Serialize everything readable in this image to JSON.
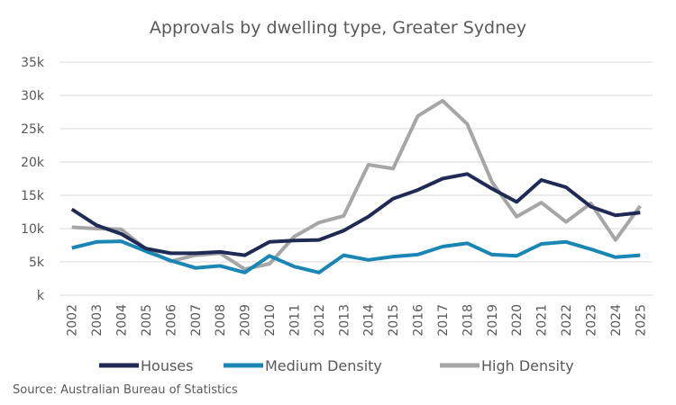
{
  "chart_data": {
    "type": "line",
    "title": "Approvals by dwelling type, Greater Sydney",
    "xlabel": "",
    "ylabel": "",
    "x": [
      "2002",
      "2003",
      "2004",
      "2005",
      "2006",
      "2007",
      "2008",
      "2009",
      "2010",
      "2011",
      "2012",
      "2013",
      "2014",
      "2015",
      "2016",
      "2017",
      "2018",
      "2019",
      "2020",
      "2021",
      "2022",
      "2023",
      "2024",
      "2025"
    ],
    "ylim": [
      0,
      35000
    ],
    "y_ticks": [
      0,
      5000,
      10000,
      15000,
      20000,
      25000,
      30000,
      35000
    ],
    "y_tick_labels": [
      "k",
      "5k",
      "10k",
      "15k",
      "20k",
      "25k",
      "30k",
      "35k"
    ],
    "grid": true,
    "legend_position": "bottom",
    "series": [
      {
        "name": "Houses",
        "color": "#1f2a55",
        "values": [
          12900,
          10500,
          9200,
          7000,
          6300,
          6300,
          6500,
          6000,
          8000,
          8200,
          8300,
          9700,
          11800,
          14500,
          15800,
          17500,
          18200,
          16000,
          14000,
          17300,
          16200,
          13300,
          12000,
          12400
        ]
      },
      {
        "name": "Medium Density",
        "color": "#1a86b4",
        "values": [
          7100,
          8000,
          8100,
          6600,
          5200,
          4100,
          4400,
          3400,
          5900,
          4300,
          3400,
          6000,
          5300,
          5800,
          6100,
          7300,
          7800,
          6100,
          5900,
          7700,
          8000,
          6900,
          5700,
          6000
        ]
      },
      {
        "name": "High Density",
        "color": "#a6a6a6",
        "values": [
          10200,
          10000,
          9900,
          6900,
          5100,
          6000,
          6300,
          3900,
          4700,
          8800,
          10900,
          11900,
          19600,
          19000,
          26900,
          29200,
          25700,
          17000,
          11800,
          13900,
          11000,
          13800,
          8300,
          13400
        ]
      }
    ]
  },
  "source": "Source: Australian Bureau of Statistics"
}
